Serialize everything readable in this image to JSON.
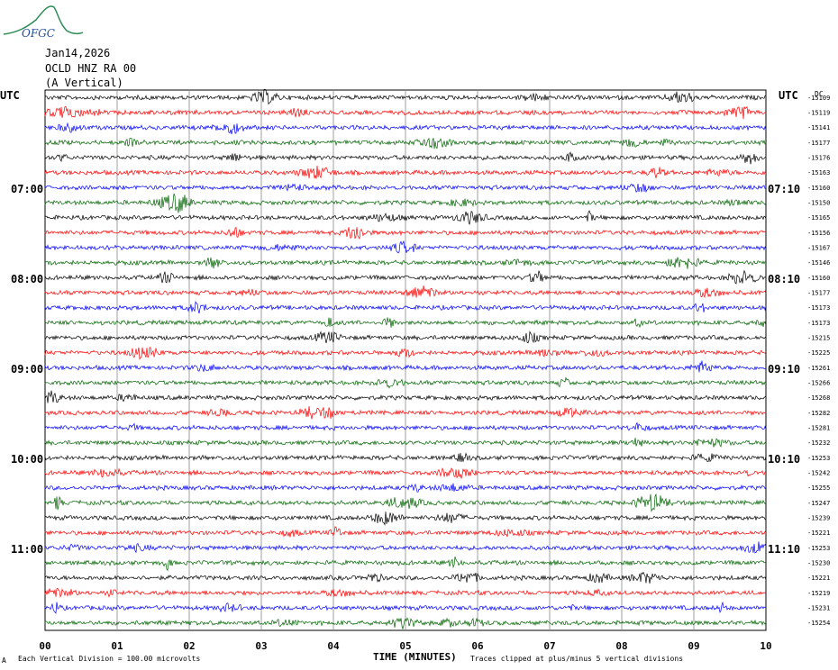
{
  "header": {
    "date": "Jan14,2026",
    "station": "OCLD HNZ RA 00",
    "component": "(A Vertical)",
    "logo_text": "OFGC"
  },
  "footer": {
    "scale_note": "Each Vertical Division =  100.00 microvolts",
    "clip_note": "Traces clipped at plus/minus 5 vertical divisions",
    "corner_mark": "A"
  },
  "colors": {
    "trace_cycle": [
      "#000000",
      "#ff0000",
      "#0000ff",
      "#006400"
    ],
    "grid": "#888888"
  },
  "chart_data": {
    "type": "line",
    "title": "OCLD HNZ RA 00 (A Vertical)",
    "xlabel": "TIME (MINUTES)",
    "x_ticks": [
      "00",
      "01",
      "02",
      "03",
      "04",
      "05",
      "06",
      "07",
      "08",
      "09",
      "10"
    ],
    "xlim": [
      0,
      10
    ],
    "left_axis_label": "UTC",
    "right_axis_label": "UTC",
    "left_time_labels": [
      "07:00",
      "08:00",
      "09:00",
      "10:00",
      "11:00"
    ],
    "right_time_labels": [
      "07:10",
      "08:10",
      "09:10",
      "10:10",
      "11:10"
    ],
    "right_top_mark": "DC",
    "trace_offsets": [
      -15109,
      -15119,
      -15141,
      -15177,
      -15176,
      -15163,
      -15160,
      -15150,
      -15165,
      -15156,
      -15167,
      -15146,
      -15160,
      -15177,
      -15173,
      -15173,
      -15215,
      -15225,
      -15261,
      -15266,
      -15268,
      -15282,
      -15281,
      -15232,
      -15253,
      -15242,
      -15255,
      -15247,
      -15239,
      -15221,
      -15253,
      -15230,
      -15221,
      -15219,
      -15231,
      -15254
    ],
    "grid": true
  }
}
